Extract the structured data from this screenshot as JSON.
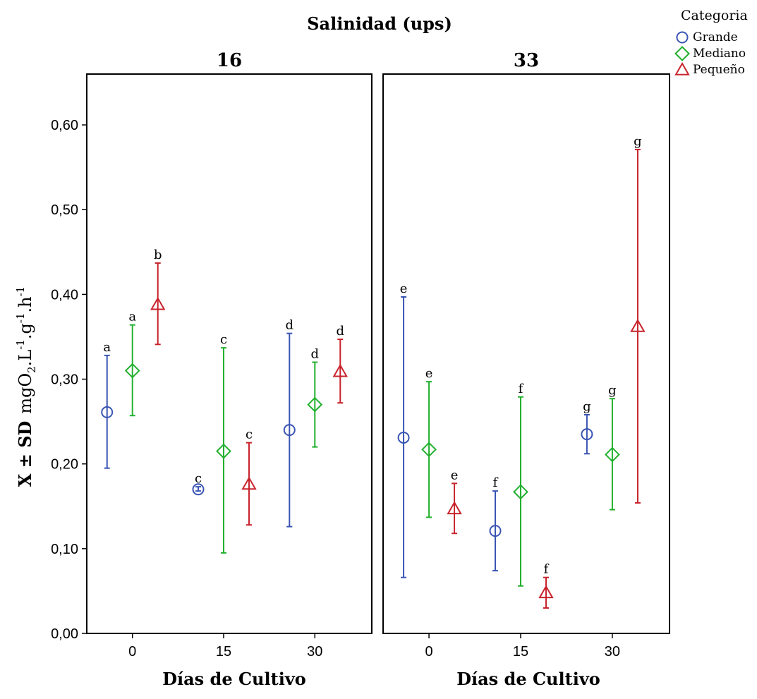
{
  "figure": {
    "title": "Salinidad (ups)",
    "ylabel_main": "X ± SD",
    "ylabel_unit": "mgO",
    "ylabel_sub2": "2",
    "ylabel_mid": ".L",
    "ylabel_sup1": "-1",
    "ylabel_mid2": ".g",
    "ylabel_sup2": "-1",
    "ylabel_mid3": ".h",
    "ylabel_sup3": "-1",
    "xlabel": "Días de Cultivo",
    "legend_title": "Categoria"
  },
  "chart_data": {
    "type": "scatter",
    "subtype": "error-bar",
    "title": "Salinidad (ups)",
    "xlabel": "Días de Cultivo",
    "ylabel": "X ± SD mgO2.L-1.g-1.h-1",
    "ylim": [
      0,
      0.66
    ],
    "yticks": [
      0.0,
      0.1,
      0.2,
      0.3,
      0.4,
      0.5,
      0.6
    ],
    "ytick_labels": [
      "0,00",
      "0,10",
      "0,20",
      "0,30",
      "0,40",
      "0,50",
      "0,60"
    ],
    "x_categories": [
      "0",
      "15",
      "30"
    ],
    "legend_position": "top-right",
    "grid": false,
    "series": [
      {
        "name": "Grande",
        "color": "#3a55b4",
        "marker": "circle"
      },
      {
        "name": "Mediano",
        "color": "#22b02e",
        "marker": "diamond"
      },
      {
        "name": "Pequeño",
        "color": "#c8232c",
        "marker": "triangle"
      }
    ],
    "panels": [
      {
        "label": "16",
        "points": [
          {
            "series": "Grande",
            "x": "0",
            "mean": 0.261,
            "low": 0.195,
            "high": 0.328,
            "sig": "a"
          },
          {
            "series": "Mediano",
            "x": "0",
            "mean": 0.31,
            "low": 0.257,
            "high": 0.364,
            "sig": "a"
          },
          {
            "series": "Pequeño",
            "x": "0",
            "mean": 0.388,
            "low": 0.341,
            "high": 0.437,
            "sig": "b"
          },
          {
            "series": "Grande",
            "x": "15",
            "mean": 0.17,
            "low": 0.168,
            "high": 0.173,
            "sig": "c"
          },
          {
            "series": "Mediano",
            "x": "15",
            "mean": 0.215,
            "low": 0.095,
            "high": 0.337,
            "sig": "c"
          },
          {
            "series": "Pequeño",
            "x": "15",
            "mean": 0.176,
            "low": 0.128,
            "high": 0.225,
            "sig": "c"
          },
          {
            "series": "Grande",
            "x": "30",
            "mean": 0.24,
            "low": 0.126,
            "high": 0.354,
            "sig": "d"
          },
          {
            "series": "Mediano",
            "x": "30",
            "mean": 0.27,
            "low": 0.22,
            "high": 0.32,
            "sig": "d"
          },
          {
            "series": "Pequeño",
            "x": "30",
            "mean": 0.309,
            "low": 0.272,
            "high": 0.347,
            "sig": "d"
          }
        ]
      },
      {
        "label": "33",
        "points": [
          {
            "series": "Grande",
            "x": "0",
            "mean": 0.231,
            "low": 0.066,
            "high": 0.397,
            "sig": "e"
          },
          {
            "series": "Mediano",
            "x": "0",
            "mean": 0.217,
            "low": 0.137,
            "high": 0.297,
            "sig": "e"
          },
          {
            "series": "Pequeño",
            "x": "0",
            "mean": 0.147,
            "low": 0.118,
            "high": 0.177,
            "sig": "e"
          },
          {
            "series": "Grande",
            "x": "15",
            "mean": 0.121,
            "low": 0.074,
            "high": 0.168,
            "sig": "f"
          },
          {
            "series": "Mediano",
            "x": "15",
            "mean": 0.167,
            "low": 0.056,
            "high": 0.279,
            "sig": "f"
          },
          {
            "series": "Pequeño",
            "x": "15",
            "mean": 0.048,
            "low": 0.03,
            "high": 0.066,
            "sig": "f"
          },
          {
            "series": "Grande",
            "x": "30",
            "mean": 0.235,
            "low": 0.212,
            "high": 0.258,
            "sig": "g"
          },
          {
            "series": "Mediano",
            "x": "30",
            "mean": 0.211,
            "low": 0.146,
            "high": 0.277,
            "sig": "g"
          },
          {
            "series": "Pequeño",
            "x": "30",
            "mean": 0.362,
            "low": 0.154,
            "high": 0.571,
            "sig": "g"
          }
        ]
      }
    ]
  }
}
